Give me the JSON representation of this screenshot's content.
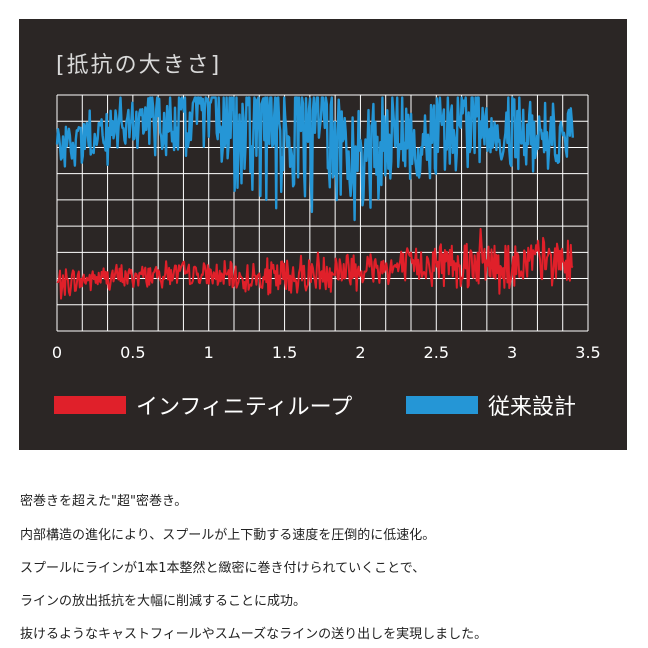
{
  "chart_data": {
    "type": "line",
    "title": "[抵抗の大きさ]",
    "xlabel": "",
    "ylabel": "",
    "xlim": [
      0,
      3.5
    ],
    "x_ticks": [
      "0",
      "0.5",
      "1",
      "1.5",
      "2",
      "2.5",
      "3",
      "3.5"
    ],
    "grid": true,
    "legend_position": "bottom",
    "series": [
      {
        "name": "インフィニティループ",
        "color": "#e0202a",
        "x": [
          0,
          0.25,
          0.5,
          0.75,
          1.0,
          1.25,
          1.5,
          1.75,
          2.0,
          2.25,
          2.5,
          2.75,
          3.0,
          3.25,
          3.4
        ],
        "center": [
          0.9,
          1.0,
          1.05,
          1.1,
          1.05,
          1.0,
          1.0,
          1.15,
          1.2,
          1.2,
          1.3,
          1.35,
          1.25,
          1.35,
          1.3
        ],
        "amplitude": [
          0.35,
          0.3,
          0.3,
          0.3,
          0.3,
          0.35,
          0.55,
          0.5,
          0.5,
          0.45,
          0.5,
          0.65,
          0.7,
          0.55,
          0.5
        ]
      },
      {
        "name": "従来設計",
        "color": "#2596d6",
        "x": [
          0,
          0.25,
          0.5,
          0.75,
          1.0,
          1.25,
          1.5,
          1.75,
          2.0,
          2.25,
          2.5,
          2.75,
          3.0,
          3.25,
          3.4
        ],
        "center": [
          3.5,
          3.7,
          3.9,
          4.0,
          4.1,
          3.9,
          3.8,
          3.6,
          3.4,
          3.6,
          3.8,
          4.0,
          3.9,
          3.7,
          3.8
        ],
        "amplitude": [
          0.5,
          0.7,
          0.9,
          1.0,
          1.3,
          1.6,
          1.8,
          1.7,
          1.5,
          1.3,
          1.1,
          1.0,
          1.0,
          0.8,
          0.6
        ]
      }
    ]
  },
  "description": [
    "密巻きを超えた\"超\"密巻き。",
    "内部構造の進化により、スプールが上下動する速度を圧倒的に低速化。",
    "スプールにラインが1本1本整然と緻密に巻き付けられていくことで、",
    "ラインの放出抵抗を大幅に削減することに成功。",
    "抜けるようなキャストフィールやスムーズなラインの送り出しを実現しました。"
  ]
}
